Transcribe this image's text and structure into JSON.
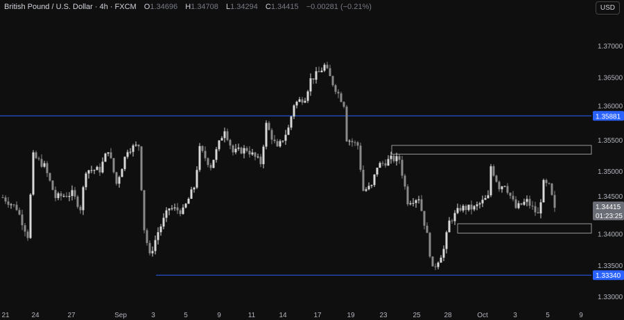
{
  "header": {
    "symbol": "British Pound / U.S. Dollar · 4h · FXCM",
    "o_label": "O",
    "o": "1.34696",
    "h_label": "H",
    "h": "1.34708",
    "l_label": "L",
    "l": "1.34294",
    "c_label": "C",
    "c": "1.34415",
    "change": "−0.00281 (−0.21%)"
  },
  "currency_button": "USD",
  "colors": {
    "bg": "#0f0f0f",
    "up": "#d9d9d9",
    "down": "#8a8a8a",
    "level": "#2962ff",
    "box": "#9a9a9a"
  },
  "chart_data": {
    "type": "candlestick",
    "ylim": [
      1.3285,
      1.3745
    ],
    "yticks": [
      "1.37000",
      "1.36500",
      "1.36000",
      "1.35500",
      "1.35000",
      "1.34500",
      "1.34000",
      "1.33500",
      "1.33000"
    ],
    "xticks": [
      "21",
      "24",
      "27",
      "Sep",
      "3",
      "5",
      "9",
      "11",
      "14",
      "17",
      "19",
      "23",
      "25",
      "28",
      "Oct",
      "3",
      "5",
      "9"
    ],
    "close_path_bar_price": [
      [
        0,
        1.3458
      ],
      [
        5,
        1.3441
      ],
      [
        9,
        1.3397
      ],
      [
        11,
        1.3524
      ],
      [
        15,
        1.3508
      ],
      [
        19,
        1.3458
      ],
      [
        25,
        1.3464
      ],
      [
        28,
        1.3441
      ],
      [
        30,
        1.3502
      ],
      [
        35,
        1.3502
      ],
      [
        38,
        1.3535
      ],
      [
        41,
        1.348
      ],
      [
        45,
        1.3535
      ],
      [
        49,
        1.3541
      ],
      [
        51,
        1.3408
      ],
      [
        53,
        1.3364
      ],
      [
        56,
        1.3403
      ],
      [
        60,
        1.3441
      ],
      [
        65,
        1.3436
      ],
      [
        69,
        1.3475
      ],
      [
        71,
        1.3535
      ],
      [
        75,
        1.3508
      ],
      [
        80,
        1.3568
      ],
      [
        83,
        1.353
      ],
      [
        88,
        1.3535
      ],
      [
        93,
        1.3513
      ],
      [
        95,
        1.3574
      ],
      [
        99,
        1.3535
      ],
      [
        103,
        1.3568
      ],
      [
        105,
        1.3607
      ],
      [
        109,
        1.3618
      ],
      [
        111,
        1.3646
      ],
      [
        114,
        1.3657
      ],
      [
        116,
        1.3668
      ],
      [
        119,
        1.364
      ],
      [
        123,
        1.3607
      ],
      [
        124,
        1.3552
      ],
      [
        128,
        1.3541
      ],
      [
        130,
        1.3469
      ],
      [
        133,
        1.3475
      ],
      [
        135,
        1.3508
      ],
      [
        140,
        1.3519
      ],
      [
        143,
        1.3519
      ],
      [
        146,
        1.3452
      ],
      [
        150,
        1.3458
      ],
      [
        153,
        1.3397
      ],
      [
        155,
        1.3342
      ],
      [
        159,
        1.3375
      ],
      [
        161,
        1.3419
      ],
      [
        165,
        1.3441
      ],
      [
        170,
        1.3441
      ],
      [
        175,
        1.3458
      ],
      [
        176,
        1.3508
      ],
      [
        179,
        1.3475
      ],
      [
        181,
        1.348
      ],
      [
        185,
        1.3441
      ],
      [
        189,
        1.3452
      ],
      [
        193,
        1.343
      ],
      [
        195,
        1.348
      ],
      [
        197,
        1.3475
      ],
      [
        199,
        1.34415
      ]
    ],
    "last_price": "1.34415",
    "countdown": "01:23:25",
    "levels": [
      {
        "price": 1.35881,
        "label": "1.35881"
      },
      {
        "price": 1.3334,
        "label": "1.33340"
      }
    ],
    "zones": [
      [
        1.3527,
        1.3541
      ],
      [
        1.3401,
        1.3416
      ]
    ]
  }
}
